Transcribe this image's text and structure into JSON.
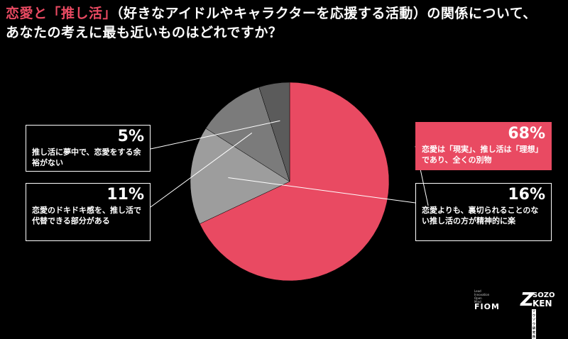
{
  "title": {
    "part1": "恋愛と",
    "highlight": "「推し活」",
    "part2": "（好きなアイドルやキャラクターを応援する活動）の関係について、あなたの考えに最も近いものはどれですか？"
  },
  "colors": {
    "accent": "#e94a62",
    "gray_light": "#9d9d9d",
    "gray_mid": "#7b7b7b",
    "gray_dark": "#5b5b5b"
  },
  "chart_data": {
    "type": "pie",
    "start_angle_deg": -90,
    "direction": "clockwise",
    "slices": [
      {
        "label": "恋愛は「現実」、推し活は「理想」であり、全くの別物",
        "value": 68,
        "pct": "68%",
        "color": "#e94a62"
      },
      {
        "label": "恋愛よりも、裏切られることのない推し活の方が精神的に楽",
        "value": 16,
        "pct": "16%",
        "color": "#9d9d9d"
      },
      {
        "label": "恋愛のドキドキ感を、推し活で代替できる部分がある",
        "value": 11,
        "pct": "11%",
        "color": "#7b7b7b"
      },
      {
        "label": "推し活に夢中で、恋愛をする余裕がない",
        "value": 5,
        "pct": "5%",
        "color": "#5b5b5b"
      }
    ]
  },
  "logos": {
    "fiom_small": [
      "Lead",
      "Innovation",
      "Open",
      "Mind"
    ],
    "fiom": "FIOM",
    "sozo_top": "SOZO",
    "sozo_z": "Z",
    "sozo_bottom": "KEN",
    "sozo_tag": "ソウゾウ研究所"
  }
}
